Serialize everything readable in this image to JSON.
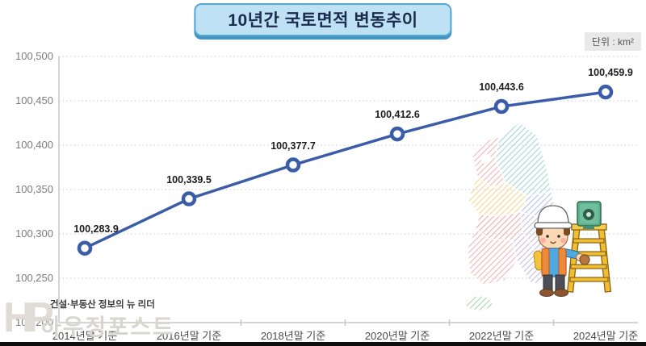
{
  "title": "10년간 국토면적 변동추이",
  "unit_label": "단위 : km²",
  "watermark": {
    "tagline": "건설·부동산 정보의 뉴 리더",
    "brand": "하우징포스트",
    "logo": "HP"
  },
  "chart_data": {
    "type": "line",
    "title": "10년간 국토면적 변동추이",
    "unit": "km²",
    "categories": [
      "2014년말 기준",
      "2016년말 기준",
      "2018년말 기준",
      "2020년말 기준",
      "2022년말 기준",
      "2024년말 기준"
    ],
    "values": [
      100283.9,
      100339.5,
      100377.7,
      100412.6,
      100443.6,
      100459.9
    ],
    "point_labels": [
      "100,283.9",
      "100,339.5",
      "100,377.7",
      "100,412.6",
      "100,443.6",
      "100,459.9"
    ],
    "ylim": [
      100200,
      100500
    ],
    "yticks": [
      100500,
      100450,
      100400,
      100350,
      100300,
      100250,
      100200
    ],
    "grid": "horizontal-dotted",
    "legend": "none",
    "line_color": "#3B5CA8",
    "marker_style": "circle-white-fill-blue-ring",
    "illustrations": [
      "korea-map-hatched-regions",
      "surveyor-character-with-theodolite-ladder"
    ]
  },
  "colors": {
    "line": "#3B5CA8",
    "title_box_bg": "#BEE1F3",
    "title_box_border": "#57A7D5",
    "title_text": "#1B2B4D",
    "unit_box_bg": "#E9E9E9",
    "grid": "#DBDBDB",
    "bottom_bar": "#0E0E0E",
    "map_pink": "#F0A6AC",
    "map_teal": "#8FD0CC",
    "map_yellow": "#F2CE7E",
    "map_lavender": "#B9AFD6",
    "map_periwinkle": "#A9B6E2",
    "map_red": "#ED9AA0",
    "map_green": "#97CE94"
  }
}
